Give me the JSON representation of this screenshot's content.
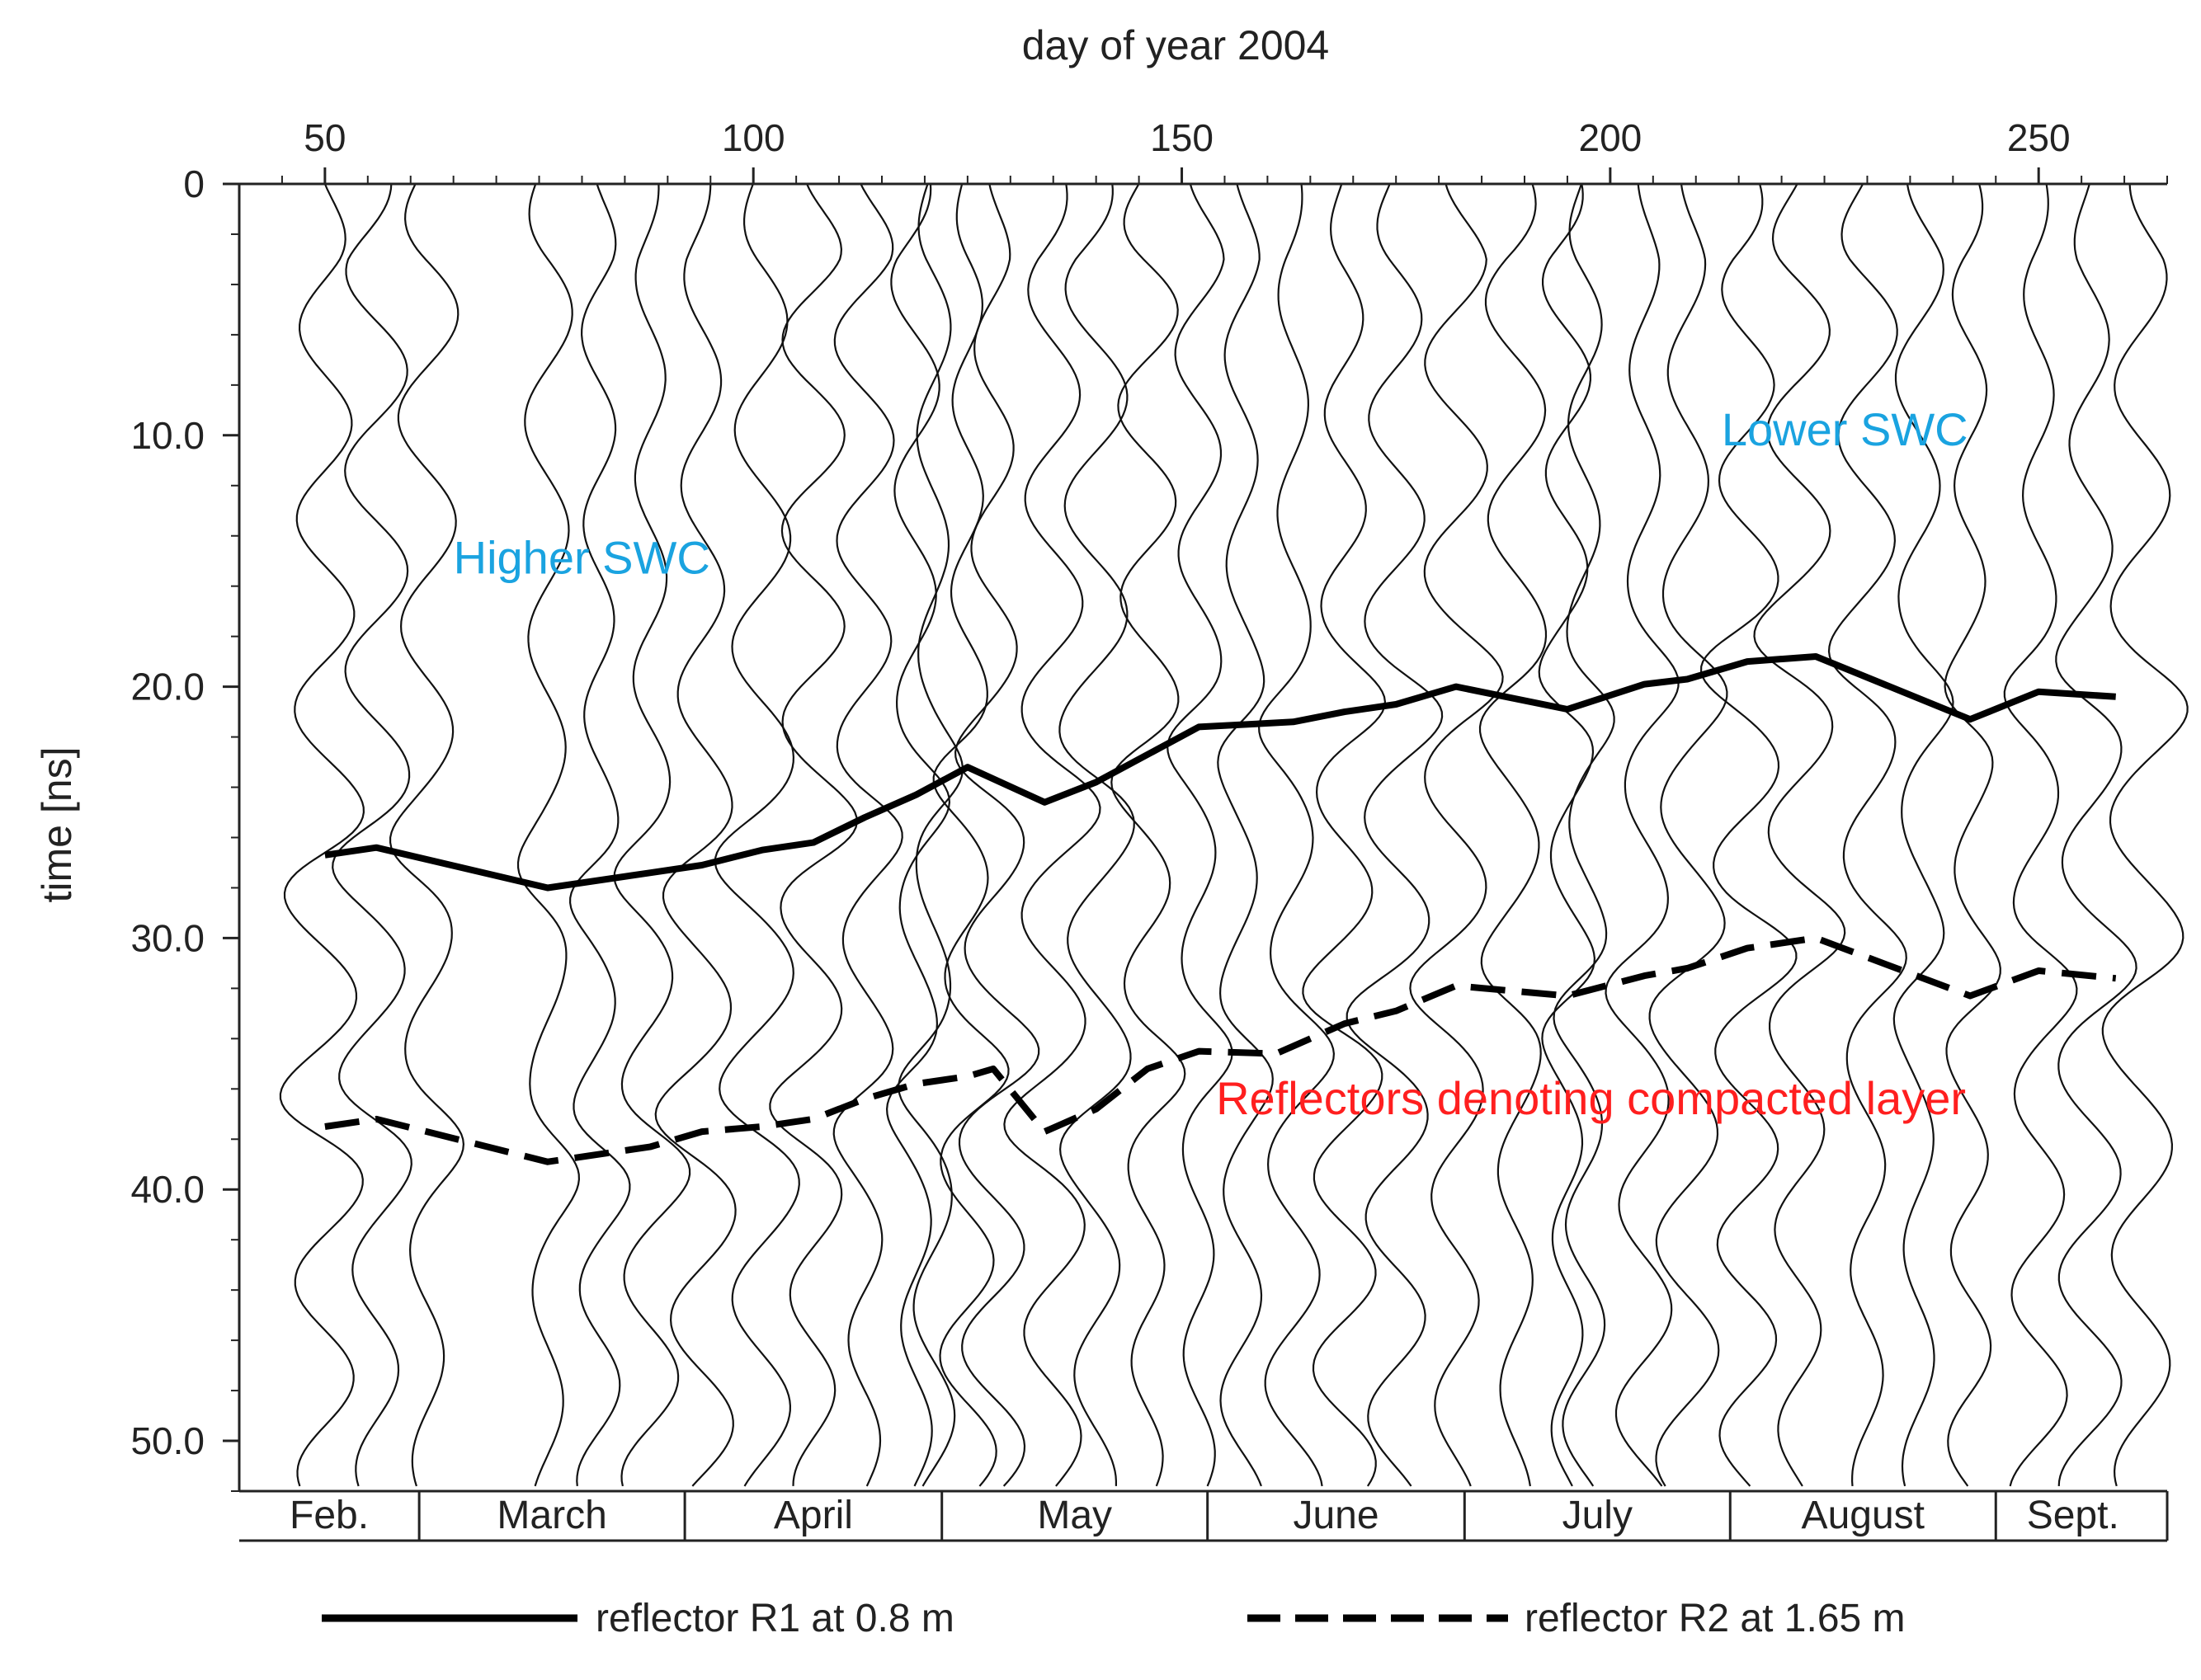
{
  "chart_data": {
    "type": "line",
    "title": "",
    "xlabel": "day of year 2004",
    "ylabel": "time [ns]",
    "xlim": [
      40,
      265
    ],
    "ylim": [
      0,
      52
    ],
    "x_ticks": [
      50,
      100,
      150,
      200,
      250
    ],
    "y_ticks": [
      0,
      10.0,
      20.0,
      30.0,
      40.0,
      50.0
    ],
    "x_tick_labels": [
      "50",
      "100",
      "150",
      "200",
      "250"
    ],
    "y_tick_labels": [
      "0",
      "10.0",
      "20.0",
      "30.0",
      "40.0",
      "50.0"
    ],
    "months": [
      {
        "label": "Feb.",
        "start": 40,
        "end": 61
      },
      {
        "label": "March",
        "start": 61,
        "end": 92
      },
      {
        "label": "April",
        "start": 92,
        "end": 122
      },
      {
        "label": "May",
        "start": 122,
        "end": 153
      },
      {
        "label": "June",
        "start": 153,
        "end": 183
      },
      {
        "label": "July",
        "start": 183,
        "end": 214
      },
      {
        "label": "August",
        "start": 214,
        "end": 245
      },
      {
        "label": "Sept.",
        "start": 245,
        "end": 263
      }
    ],
    "trace_days": [
      50,
      56,
      62,
      76,
      82,
      88,
      94,
      101,
      107,
      113,
      119,
      121,
      125,
      128,
      135,
      140,
      146,
      152,
      157,
      163,
      169,
      175,
      182,
      189,
      195,
      197,
      204,
      209,
      216,
      222,
      230,
      236,
      242,
      250,
      256,
      262
    ],
    "series": [
      {
        "name": "reflector R1 at 0.8 m",
        "style": "solid",
        "x": [
          50,
          56,
          76,
          88,
          94,
          101,
          107,
          113,
          119,
          125,
          134,
          140,
          146,
          152,
          163,
          169,
          175,
          182,
          195,
          204,
          209,
          216,
          224,
          242,
          250,
          259
        ],
        "y": [
          26.7,
          26.4,
          28.0,
          27.4,
          27.1,
          26.5,
          26.2,
          25.2,
          24.3,
          23.2,
          24.6,
          23.8,
          22.7,
          21.6,
          21.4,
          21.0,
          20.7,
          20.0,
          20.9,
          19.9,
          19.7,
          19.0,
          18.8,
          21.3,
          20.2,
          20.4
        ]
      },
      {
        "name": "reflector R2 at 1.65 m",
        "style": "dashed",
        "x": [
          50,
          56,
          76,
          88,
          94,
          101,
          107,
          113,
          119,
          125,
          128,
          134,
          140,
          146,
          152,
          161,
          169,
          175,
          182,
          195,
          204,
          209,
          216,
          224,
          242,
          250,
          259
        ],
        "y": [
          37.5,
          37.2,
          38.9,
          38.3,
          37.7,
          37.5,
          37.2,
          36.4,
          35.8,
          35.5,
          35.2,
          37.7,
          36.8,
          35.2,
          34.5,
          34.6,
          33.4,
          32.9,
          31.9,
          32.3,
          31.5,
          31.2,
          30.4,
          30.0,
          32.3,
          31.3,
          31.6
        ]
      }
    ],
    "legend": {
      "position": "bottom",
      "entries": [
        "reflector R1 at 0.8 m",
        "reflector R2 at 1.65 m"
      ]
    },
    "annotations": [
      {
        "text": "Higher SWC",
        "x": 65,
        "y": 15.5,
        "color": "#1aa3e0"
      },
      {
        "text": "Lower SWC",
        "x": 213,
        "y": 10.4,
        "color": "#1aa3e0"
      },
      {
        "text": "Reflectors denoting compacted layer",
        "x": 154,
        "y": 37.0,
        "color": "#ff1f1f"
      }
    ]
  }
}
